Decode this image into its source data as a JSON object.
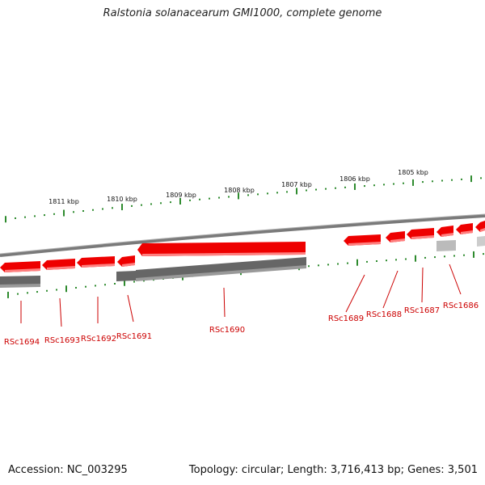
{
  "title": "Ralstonia solanacearum GMI1000, complete genome",
  "footer": {
    "accession": "Accession: NC_003295",
    "summary": "Topology: circular; Length: 3,716,413 bp; Genes: 3,501"
  },
  "colors": {
    "forward_gene": "#ee0000",
    "reverse_gene": "#666666",
    "pseudo_gene": "#bbbbbb",
    "ticks": "#2e8b2e",
    "backbone": "#888888",
    "label": "#cc0000"
  },
  "scale_labels": [
    "1811 kbp",
    "1810 kbp",
    "1809 kbp",
    "1808 kbp",
    "1807 kbp",
    "1806 kbp",
    "1805 kbp"
  ],
  "gene_labels": [
    "RSc1694",
    "RSc1693",
    "RSc1692",
    "RSc1691",
    "RSc1690",
    "RSc1689",
    "RSc1688",
    "RSc1687",
    "RSc1686"
  ]
}
